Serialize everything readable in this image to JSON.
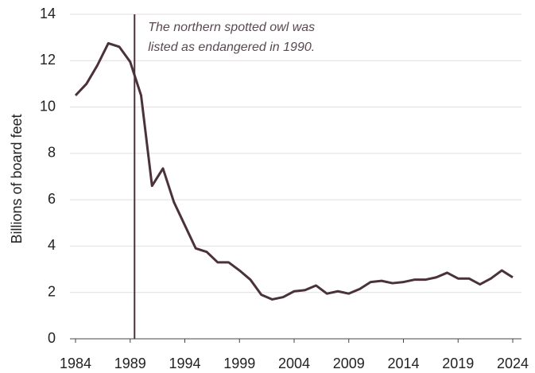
{
  "chart_data": {
    "type": "line",
    "y_label": "Billions of board feet",
    "x": [
      1984,
      1985,
      1986,
      1987,
      1988,
      1989,
      1990,
      1991,
      1992,
      1993,
      1994,
      1995,
      1996,
      1997,
      1998,
      1999,
      2000,
      2001,
      2002,
      2003,
      2004,
      2005,
      2006,
      2007,
      2008,
      2009,
      2010,
      2011,
      2012,
      2013,
      2014,
      2015,
      2016,
      2017,
      2018,
      2019,
      2020,
      2021,
      2022,
      2023,
      2024
    ],
    "series": [
      {
        "color": "#4a3238",
        "values": [
          10.5,
          11.0,
          11.8,
          12.75,
          12.6,
          11.95,
          10.5,
          6.6,
          7.35,
          5.9,
          4.9,
          3.9,
          3.75,
          3.3,
          3.3,
          2.95,
          2.55,
          1.9,
          1.7,
          1.8,
          2.05,
          2.1,
          2.3,
          1.95,
          2.05,
          1.95,
          2.15,
          2.45,
          2.5,
          2.4,
          2.45,
          2.55,
          2.55,
          2.65,
          2.85,
          2.6,
          2.6,
          2.35,
          2.6,
          2.95,
          2.65
        ]
      }
    ],
    "xlim": [
      1984,
      2024
    ],
    "xticks": [
      1984,
      1989,
      1994,
      1999,
      2004,
      2009,
      2014,
      2019,
      2024
    ],
    "ylim": [
      0,
      14
    ],
    "yticks": [
      0,
      2,
      4,
      6,
      8,
      10,
      12,
      14
    ],
    "grid": true,
    "annotation": {
      "lines": [
        "The northern spotted owl was",
        "listed as endangered in 1990."
      ],
      "x": 1989.4,
      "color": "#4a3238"
    }
  }
}
